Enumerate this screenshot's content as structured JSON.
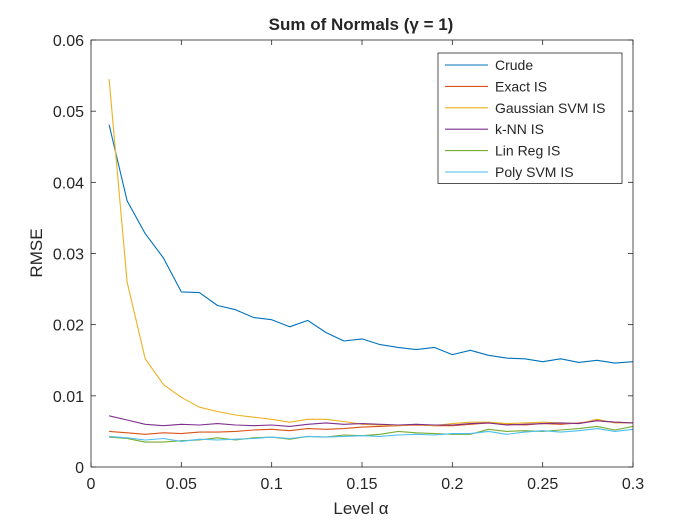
{
  "chart_data": {
    "type": "line",
    "title": "Sum of Normals (γ = 1)",
    "xlabel": "Level α",
    "ylabel": "RMSE",
    "xlim": [
      0,
      0.3
    ],
    "ylim": [
      0,
      0.06
    ],
    "xticks": [
      0,
      0.05,
      0.1,
      0.15,
      0.2,
      0.25,
      0.3
    ],
    "xtick_labels": [
      "0",
      "0.05",
      "0.1",
      "0.15",
      "0.2",
      "0.25",
      "0.3"
    ],
    "yticks": [
      0,
      0.01,
      0.02,
      0.03,
      0.04,
      0.05,
      0.06
    ],
    "ytick_labels": [
      "0",
      "0.01",
      "0.02",
      "0.03",
      "0.04",
      "0.05",
      "0.06"
    ],
    "grid": false,
    "legend_position": "top-right",
    "x": [
      0.01,
      0.02,
      0.03,
      0.04,
      0.05,
      0.06,
      0.07,
      0.08,
      0.09,
      0.1,
      0.11,
      0.12,
      0.13,
      0.14,
      0.15,
      0.16,
      0.17,
      0.18,
      0.19,
      0.2,
      0.21,
      0.22,
      0.23,
      0.24,
      0.25,
      0.26,
      0.27,
      0.28,
      0.29,
      0.3
    ],
    "series": [
      {
        "name": "Crude",
        "color": "#0072BD",
        "values": [
          0.0481,
          0.0374,
          0.0328,
          0.0294,
          0.0246,
          0.0245,
          0.0227,
          0.0221,
          0.021,
          0.0207,
          0.0197,
          0.0206,
          0.0189,
          0.0177,
          0.018,
          0.0172,
          0.0168,
          0.0165,
          0.0168,
          0.0158,
          0.0164,
          0.0157,
          0.0153,
          0.0152,
          0.0148,
          0.0152,
          0.0147,
          0.015,
          0.0146,
          0.0148
        ]
      },
      {
        "name": "Exact IS",
        "color": "#D95319",
        "values": [
          0.005,
          0.0048,
          0.0046,
          0.0048,
          0.0047,
          0.0049,
          0.0049,
          0.005,
          0.0052,
          0.0053,
          0.0051,
          0.0054,
          0.0053,
          0.0054,
          0.0056,
          0.0057,
          0.0058,
          0.0059,
          0.0058,
          0.0058,
          0.006,
          0.0062,
          0.006,
          0.0059,
          0.0061,
          0.006,
          0.0062,
          0.0065,
          0.0063,
          0.0062
        ]
      },
      {
        "name": "Gaussian SVM IS",
        "color": "#EDB120",
        "values": [
          0.0545,
          0.026,
          0.0152,
          0.0116,
          0.0098,
          0.0084,
          0.0078,
          0.0073,
          0.007,
          0.0067,
          0.0063,
          0.0067,
          0.0067,
          0.0064,
          0.006,
          0.0059,
          0.0058,
          0.006,
          0.0058,
          0.0061,
          0.0063,
          0.0063,
          0.0061,
          0.0062,
          0.0063,
          0.0062,
          0.0061,
          0.0067,
          0.0062,
          0.0062
        ]
      },
      {
        "name": "k-NN IS",
        "color": "#7E2F8E",
        "values": [
          0.0072,
          0.0066,
          0.006,
          0.0058,
          0.006,
          0.0059,
          0.0061,
          0.0059,
          0.0058,
          0.0059,
          0.0057,
          0.006,
          0.0062,
          0.006,
          0.0061,
          0.006,
          0.0059,
          0.006,
          0.0059,
          0.0059,
          0.0061,
          0.0062,
          0.0059,
          0.006,
          0.0061,
          0.0062,
          0.0061,
          0.0065,
          0.0063,
          0.0062
        ]
      },
      {
        "name": "Lin Reg IS",
        "color": "#77AC30",
        "values": [
          0.0042,
          0.004,
          0.0035,
          0.0035,
          0.0037,
          0.0038,
          0.0041,
          0.0038,
          0.0041,
          0.0042,
          0.0039,
          0.0043,
          0.0042,
          0.0045,
          0.0044,
          0.0046,
          0.005,
          0.0048,
          0.0047,
          0.0046,
          0.0046,
          0.0053,
          0.005,
          0.0051,
          0.005,
          0.0052,
          0.0054,
          0.0057,
          0.0052,
          0.0057
        ]
      },
      {
        "name": "Poly SVM IS",
        "color": "#4DBEEE",
        "values": [
          0.0043,
          0.0041,
          0.0038,
          0.004,
          0.0036,
          0.0039,
          0.0038,
          0.0039,
          0.004,
          0.0042,
          0.004,
          0.0043,
          0.0042,
          0.0043,
          0.0044,
          0.0043,
          0.0045,
          0.0046,
          0.0045,
          0.0047,
          0.0047,
          0.005,
          0.0046,
          0.0049,
          0.0051,
          0.0049,
          0.0051,
          0.0054,
          0.005,
          0.0053
        ]
      }
    ]
  }
}
